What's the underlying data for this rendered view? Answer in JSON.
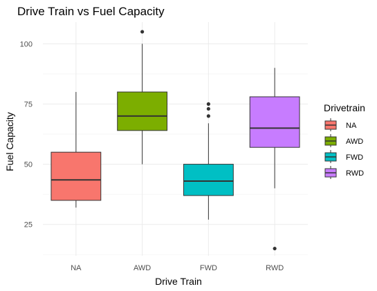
{
  "chart_data": {
    "type": "boxplot",
    "title": "Drive Train vs Fuel Capacity",
    "xlabel": "Drive Train",
    "ylabel": "Fuel Capacity",
    "categories": [
      "NA",
      "AWD",
      "FWD",
      "RWD"
    ],
    "ylim": [
      12,
      109
    ],
    "yticks": [
      25,
      50,
      75,
      100
    ],
    "grid": true,
    "legend": {
      "title": "Drivetrain",
      "position": "right",
      "entries": [
        "NA",
        "AWD",
        "FWD",
        "RWD"
      ]
    },
    "colors": {
      "NA": "#F8766D",
      "AWD": "#7CAE00",
      "FWD": "#00BFC4",
      "RWD": "#C77CFF"
    },
    "boxes": [
      {
        "category": "NA",
        "whisker_low": 32,
        "q1": 35,
        "median": 43.5,
        "q3": 55,
        "whisker_high": 80,
        "outliers": []
      },
      {
        "category": "AWD",
        "whisker_low": 50,
        "q1": 64,
        "median": 70,
        "q3": 80,
        "whisker_high": 100,
        "outliers": [
          105
        ]
      },
      {
        "category": "FWD",
        "whisker_low": 27,
        "q1": 37,
        "median": 43,
        "q3": 50,
        "whisker_high": 67,
        "outliers": [
          70,
          73,
          75
        ]
      },
      {
        "category": "RWD",
        "whisker_low": 40,
        "q1": 57,
        "median": 65,
        "q3": 78,
        "whisker_high": 90,
        "outliers": [
          15
        ]
      }
    ]
  }
}
